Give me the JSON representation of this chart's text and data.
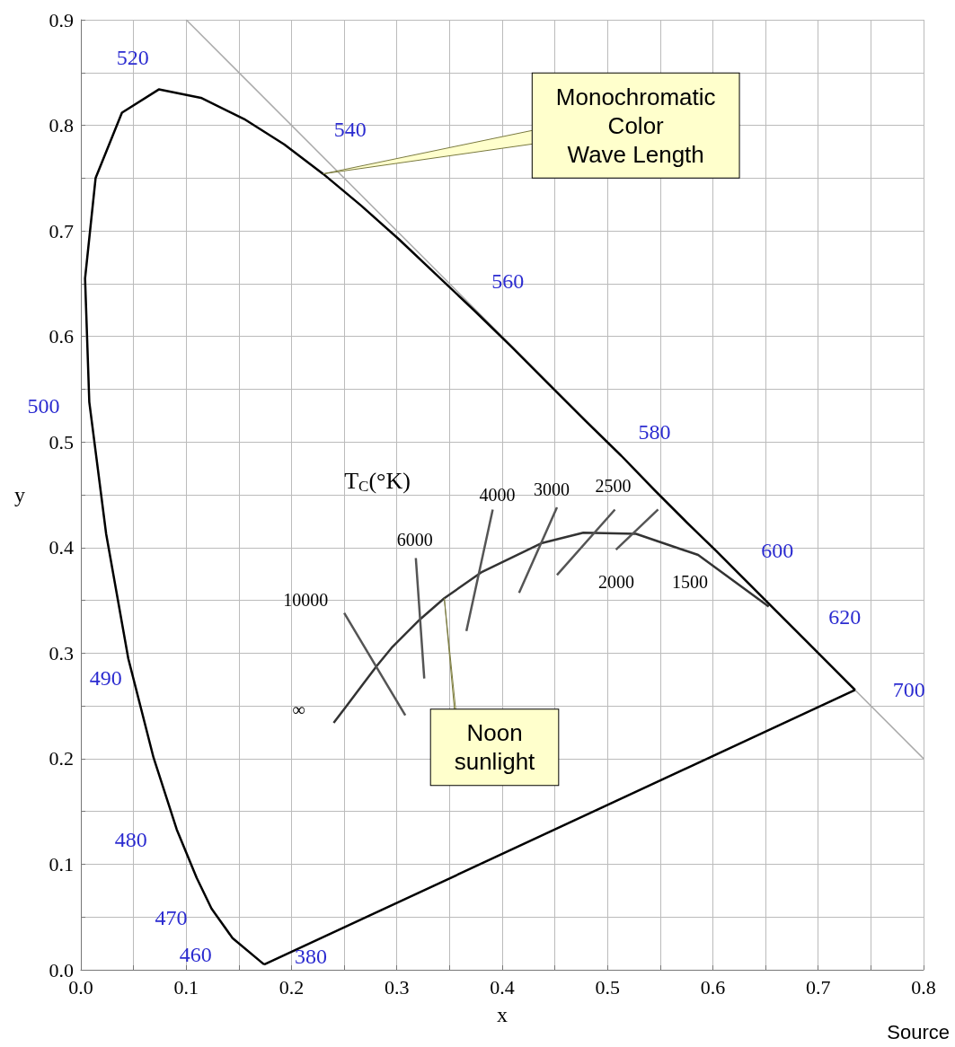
{
  "chart_data": {
    "type": "line",
    "xlabel": "x",
    "ylabel": "y",
    "xlim": [
      0,
      0.8
    ],
    "ylim": [
      0,
      0.9
    ],
    "xticks": [
      {
        "value": 0,
        "label": "0.0"
      },
      {
        "value": 0.05,
        "label": null
      },
      0.1,
      {
        "value": 0.15,
        "label": null
      },
      0.2,
      {
        "value": 0.25,
        "label": null
      },
      0.3,
      {
        "value": 0.35,
        "label": null
      },
      0.4,
      {
        "value": 0.45,
        "label": null
      },
      0.5,
      {
        "value": 0.55,
        "label": null
      },
      0.6,
      {
        "value": 0.65,
        "label": null
      },
      0.7,
      {
        "value": 0.75,
        "label": null
      },
      0.8
    ],
    "yticks": [
      {
        "value": 0,
        "label": "0.0"
      },
      {
        "value": 0.05,
        "label": null
      },
      0.1,
      {
        "value": 0.15,
        "label": null
      },
      0.2,
      {
        "value": 0.25,
        "label": null
      },
      0.3,
      {
        "value": 0.35,
        "label": null
      },
      0.4,
      {
        "value": 0.45,
        "label": null
      },
      0.5,
      {
        "value": 0.55,
        "label": null
      },
      0.6,
      {
        "value": 0.65,
        "label": null
      },
      0.7,
      {
        "value": 0.75,
        "label": null
      },
      0.8,
      {
        "value": 0.85,
        "label": null
      },
      0.9
    ],
    "grid": true,
    "marker": "none",
    "line_style": "solid",
    "series": [
      {
        "color": "#aaaaaa",
        "x": [
          0.1,
          0.8
        ],
        "values": [
          0.9,
          0.2
        ]
      },
      {
        "color": "#000000",
        "x": [
          0.174,
          0.144,
          0.124,
          0.11,
          0.091,
          0.069,
          0.045,
          0.024,
          0.008,
          0.004,
          0.014,
          0.039,
          0.074,
          0.114,
          0.155,
          0.193,
          0.23,
          0.266,
          0.302,
          0.337,
          0.373,
          0.409,
          0.444,
          0.479,
          0.513,
          0.545,
          0.575,
          0.603,
          0.627,
          0.666,
          0.692,
          0.719,
          0.735
        ],
        "values": [
          0.005,
          0.03,
          0.058,
          0.087,
          0.133,
          0.201,
          0.295,
          0.413,
          0.538,
          0.655,
          0.75,
          0.812,
          0.834,
          0.826,
          0.806,
          0.782,
          0.754,
          0.724,
          0.692,
          0.659,
          0.625,
          0.59,
          0.555,
          0.52,
          0.487,
          0.454,
          0.424,
          0.397,
          0.373,
          0.334,
          0.308,
          0.281,
          0.265
        ]
      },
      {
        "color": "#000000",
        "x": [
          0.174,
          0.735
        ],
        "values": [
          0.005,
          0.265
        ]
      },
      {
        "color": "#333333",
        "x": [
          0.653,
          0.586,
          0.527,
          0.477,
          0.437,
          0.381,
          0.345,
          0.322,
          0.295,
          0.281,
          0.253,
          0.24
        ],
        "values": [
          0.344,
          0.393,
          0.413,
          0.414,
          0.404,
          0.377,
          0.352,
          0.332,
          0.305,
          0.288,
          0.251,
          0.234
        ]
      },
      {
        "color": "#555555",
        "x": [
          0.25,
          0.308,
          0.31,
          0.318,
          0.326,
          0.33,
          0.391,
          0.366,
          0.37,
          0.452,
          0.416,
          0.42,
          0.507,
          0.452,
          0.46,
          0.548,
          0.508
        ],
        "values": [
          0.338,
          0.241,
          null,
          0.39,
          0.276,
          null,
          0.436,
          0.321,
          null,
          0.438,
          0.357,
          null,
          0.436,
          0.374,
          null,
          0.436,
          0.398
        ]
      }
    ],
    "annotations": [
      {
        "text": "Monochromatic\nColor\nWave Length",
        "x": 0.23,
        "y": 0.754
      },
      {
        "text": "Noon\nsunlight",
        "x": 0.345,
        "y": 0.352
      },
      "T$_{C}$(°K)",
      {
        "text": "10000",
        "x": 0.25,
        "y": 0.338
      },
      {
        "text": "6000",
        "x": 0.318,
        "y": 0.39
      },
      {
        "text": "4000",
        "x": 0.391,
        "y": 0.436
      },
      {
        "text": "3000",
        "x": 0.452,
        "y": 0.438
      },
      {
        "text": "2500",
        "x": 0.507,
        "y": 0.436
      },
      {
        "text": "2000",
        "x": 0.527,
        "y": 0.413
      },
      {
        "text": "1500",
        "x": 0.586,
        "y": 0.393
      },
      {
        "text": "∞",
        "x": 0.24,
        "y": 0.234
      },
      {
        "text": "380",
        "x": 0.174,
        "y": 0.005
      },
      {
        "text": "460",
        "x": 0.144,
        "y": 0.03
      },
      {
        "text": "470",
        "x": 0.124,
        "y": 0.058
      },
      {
        "text": "480",
        "x": 0.091,
        "y": 0.133
      },
      {
        "text": "490",
        "x": 0.045,
        "y": 0.295
      },
      {
        "text": "500",
        "x": 0.008,
        "y": 0.538
      },
      {
        "text": "520",
        "x": 0.074,
        "y": 0.834
      },
      {
        "text": "540",
        "x": 0.23,
        "y": 0.754
      },
      {
        "text": "560",
        "x": 0.373,
        "y": 0.625
      },
      {
        "text": "580",
        "x": 0.513,
        "y": 0.487
      },
      {
        "text": "600",
        "x": 0.627,
        "y": 0.373
      },
      {
        "text": "620",
        "x": 0.692,
        "y": 0.308
      },
      {
        "text": "700",
        "x": 0.735,
        "y": 0.265
      },
      "Source"
    ]
  }
}
